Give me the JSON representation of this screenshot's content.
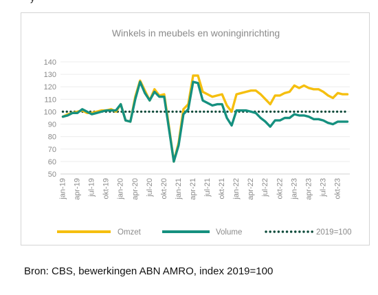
{
  "page": {
    "top_fragment": "y",
    "source": "Bron: CBS, bewerkingen ABN AMRO, index 2019=100"
  },
  "chart_data": {
    "type": "line",
    "title": "Winkels in meubels en woninginrichting",
    "xlabel": "",
    "ylabel": "",
    "ylim": [
      50,
      140
    ],
    "yticks": [
      50,
      60,
      70,
      80,
      90,
      100,
      110,
      120,
      130,
      140
    ],
    "x": [
      "jan-19",
      "feb-19",
      "mrt-19",
      "apr-19",
      "mei-19",
      "jun-19",
      "jul-19",
      "aug-19",
      "sep-19",
      "okt-19",
      "nov-19",
      "dec-19",
      "jan-20",
      "feb-20",
      "mrt-20",
      "apr-20",
      "mei-20",
      "jun-20",
      "jul-20",
      "aug-20",
      "sep-20",
      "okt-20",
      "nov-20",
      "dec-20",
      "jan-21",
      "feb-21",
      "mrt-21",
      "apr-21",
      "mei-21",
      "jun-21",
      "jul-21",
      "aug-21",
      "sep-21",
      "okt-21",
      "nov-21",
      "dec-21",
      "jan-22",
      "feb-22",
      "mrt-22",
      "apr-22",
      "mei-22",
      "jun-22",
      "jul-22",
      "aug-22",
      "sep-22",
      "okt-22",
      "nov-22",
      "dec-22",
      "jan-23",
      "feb-23",
      "mrt-23",
      "apr-23",
      "mei-23",
      "jun-23",
      "jul-23",
      "aug-23",
      "sep-23",
      "okt-23",
      "nov-23",
      "dec-23"
    ],
    "xtick_labels": [
      "jan-19",
      "apr-19",
      "jul-19",
      "okt-19",
      "jan-20",
      "apr-20",
      "jul-20",
      "okt-20",
      "jan-21",
      "apr-21",
      "jul-21",
      "okt-21",
      "jan-22",
      "apr-22",
      "jul-22",
      "okt-22",
      "jan-23",
      "apr-23",
      "jul-23",
      "okt-23"
    ],
    "series": [
      {
        "name": "Omzet",
        "color": "#f5bf0f",
        "style": "solid",
        "values": [
          96,
          98,
          99,
          100,
          101,
          99,
          99,
          100,
          101,
          101,
          102,
          100,
          106,
          93,
          92,
          112,
          125,
          117,
          109,
          118,
          113,
          114,
          88,
          60,
          75,
          102,
          106,
          129,
          129,
          116,
          114,
          112,
          113,
          114,
          105,
          100,
          114,
          115,
          116,
          117,
          117,
          114,
          110,
          106,
          113,
          113,
          115,
          116,
          121,
          119,
          121,
          119,
          118,
          118,
          116,
          113,
          111,
          115,
          114,
          114
        ]
      },
      {
        "name": "Volume",
        "color": "#15907f",
        "style": "solid",
        "values": [
          96,
          97,
          99,
          99,
          102,
          100,
          98,
          99,
          100,
          101,
          101,
          101,
          106,
          93,
          92,
          110,
          124,
          115,
          109,
          116,
          112,
          112,
          86,
          60,
          73,
          98,
          102,
          124,
          123,
          109,
          107,
          105,
          106,
          106,
          95,
          89,
          101,
          101,
          101,
          100,
          99,
          95,
          92,
          88,
          93,
          93,
          95,
          95,
          98,
          97,
          97,
          96,
          94,
          94,
          93,
          91,
          90,
          92,
          92,
          92
        ]
      },
      {
        "name": "2019=100",
        "color": "#0d4a3a",
        "style": "dotted",
        "values": [
          100,
          100,
          100,
          100,
          100,
          100,
          100,
          100,
          100,
          100,
          100,
          100,
          100,
          100,
          100,
          100,
          100,
          100,
          100,
          100,
          100,
          100,
          100,
          100,
          100,
          100,
          100,
          100,
          100,
          100,
          100,
          100,
          100,
          100,
          100,
          100,
          100,
          100,
          100,
          100,
          100,
          100,
          100,
          100,
          100,
          100,
          100,
          100,
          100,
          100,
          100,
          100,
          100,
          100,
          100,
          100,
          100,
          100,
          100,
          100
        ]
      }
    ],
    "legend": "bottom",
    "grid": true
  }
}
